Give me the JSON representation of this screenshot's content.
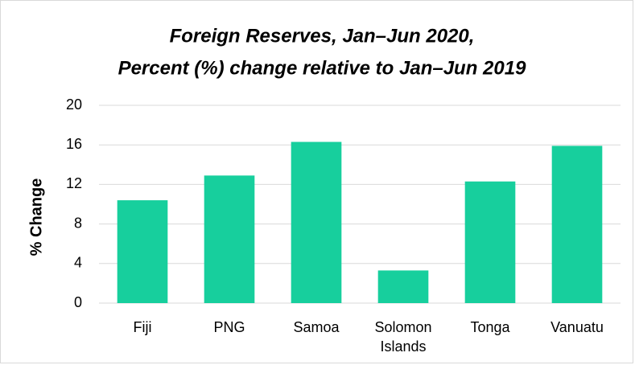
{
  "chart_data": {
    "type": "bar",
    "title": [
      "Foreign Reserves, Jan–Jun 2020,",
      "Percent (%) change relative to Jan–Jun 2019"
    ],
    "y_label": "% Change",
    "categories": [
      "Fiji",
      "PNG",
      "Samoa",
      "Solomon Islands",
      "Tonga",
      "Vanuatu"
    ],
    "values": [
      10.4,
      12.9,
      16.3,
      3.3,
      12.3,
      15.9
    ],
    "color": "#17cf9d",
    "ylim": [
      0,
      20
    ],
    "yticks": [
      0,
      4,
      8,
      12,
      16,
      20
    ],
    "grid": true
  }
}
